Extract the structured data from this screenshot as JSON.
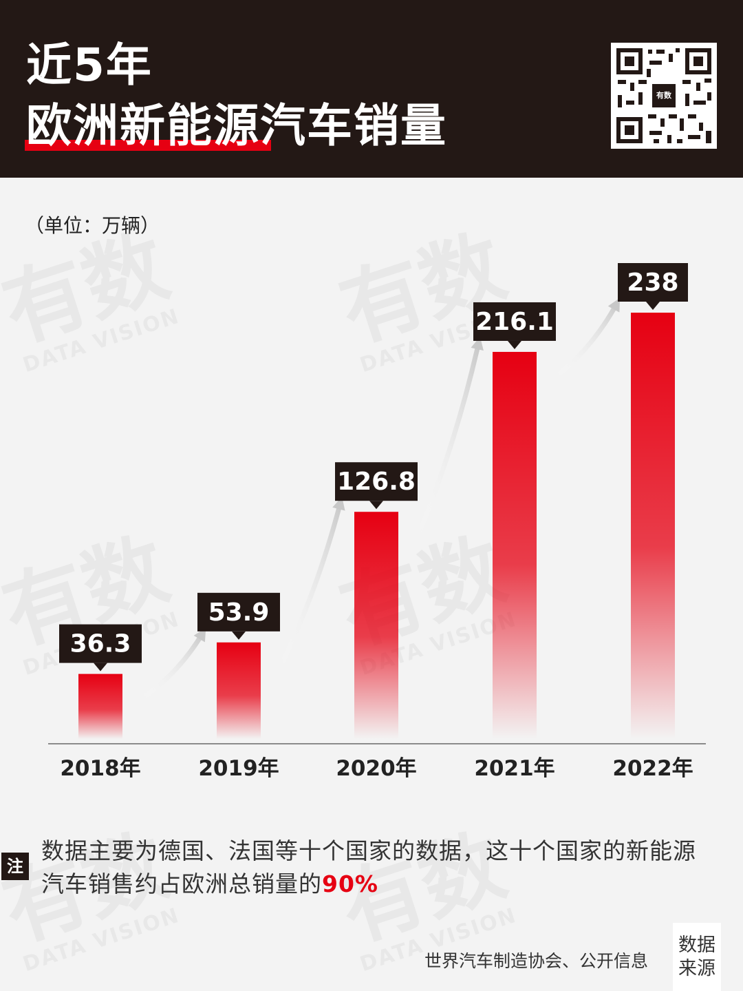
{
  "header": {
    "title_line1": "近5年",
    "title_line2": "欧洲新能源汽车销量",
    "qr_badge": "有数"
  },
  "unit_label": "（单位：万辆）",
  "watermark": {
    "big": "有数",
    "small": "DATA VISION"
  },
  "chart_data": {
    "type": "bar",
    "categories": [
      "2018年",
      "2019年",
      "2020年",
      "2021年",
      "2022年"
    ],
    "values": [
      36.3,
      53.9,
      126.8,
      216.1,
      238
    ],
    "value_labels": [
      "36.3",
      "53.9",
      "126.8",
      "216.1",
      "238"
    ],
    "ylim": [
      0,
      238
    ],
    "bar_color": "#e60012",
    "label_bg": "#231815",
    "grid": false
  },
  "note": {
    "tag": "注",
    "text": "数据主要为德国、法国等十个国家的数据，这十个国家的新能源汽车销售约占欧洲总销量的",
    "highlight": "90%"
  },
  "source": {
    "text": "世界汽车制造协会、公开信息",
    "tag": "数据来源"
  },
  "colors": {
    "accent": "#e60012",
    "dark": "#231815",
    "background": "#f3f3f3"
  }
}
